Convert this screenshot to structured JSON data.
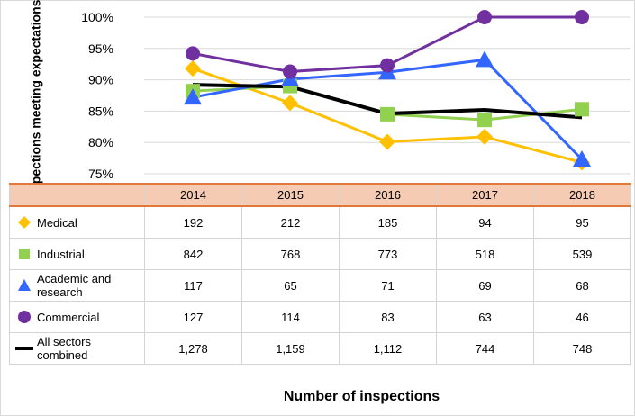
{
  "chart_data": {
    "type": "line",
    "ylabel": "Inspections meeting expectations",
    "xlabel": "Number of inspections",
    "ylim": [
      75,
      100
    ],
    "yticks": [
      "75%",
      "80%",
      "85%",
      "90%",
      "95%",
      "100%"
    ],
    "categories": [
      "2014",
      "2015",
      "2016",
      "2017",
      "2018"
    ],
    "grid": true,
    "series": [
      {
        "name": "Medical",
        "marker": "diamond",
        "color": "#ffc000",
        "values": [
          91.8,
          86.3,
          80.1,
          80.9,
          76.8
        ],
        "inspections": [
          "192",
          "212",
          "185",
          "94",
          "95"
        ]
      },
      {
        "name": "Industrial",
        "marker": "square",
        "color": "#92d050",
        "values": [
          88.2,
          89.0,
          84.5,
          83.6,
          85.3
        ],
        "inspections": [
          "842",
          "768",
          "773",
          "518",
          "539"
        ]
      },
      {
        "name": "Academic and research",
        "marker": "triangle",
        "color": "#3366ff",
        "values": [
          87.2,
          90.1,
          91.2,
          93.2,
          77.3
        ],
        "inspections": [
          "117",
          "65",
          "71",
          "69",
          "68"
        ]
      },
      {
        "name": "Commercial",
        "marker": "circle",
        "color": "#7030a0",
        "values": [
          94.2,
          91.3,
          92.3,
          100,
          100
        ],
        "inspections": [
          "127",
          "114",
          "83",
          "63",
          "46"
        ]
      },
      {
        "name": "All sectors combined",
        "marker": "line",
        "color": "#000000",
        "values": [
          89.2,
          88.9,
          84.6,
          85.2,
          84.0
        ],
        "inspections": [
          "1,278",
          "1,159",
          "1,112",
          "744",
          "748"
        ]
      }
    ]
  }
}
